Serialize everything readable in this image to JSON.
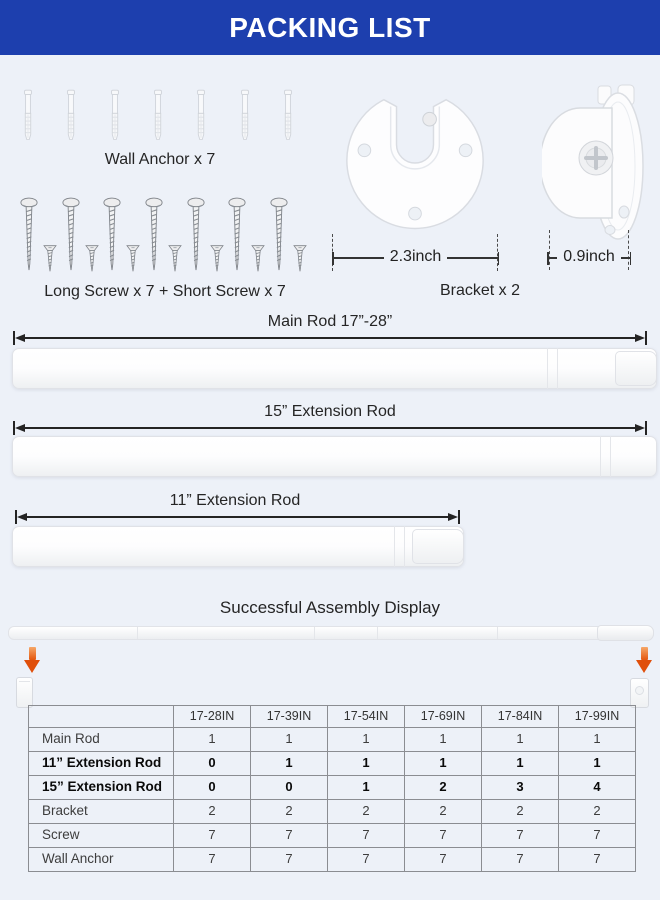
{
  "header": {
    "title": "PACKING LIST"
  },
  "sections": {
    "wall_anchor_label": "Wall Anchor x 7",
    "screw_label": "Long Screw x 7 + Short Screw x 7",
    "bracket_label": "Bracket x 2",
    "bracket_front_width": "2.3inch",
    "bracket_side_width": "0.9inch",
    "assembly_title": "Successful Assembly Display"
  },
  "counts": {
    "wall_anchor": 7,
    "long_screw": 7,
    "short_screw": 7,
    "bracket": 2
  },
  "rods": [
    {
      "label": "Main Rod 17”-28”"
    },
    {
      "label": "15” Extension Rod"
    },
    {
      "label": "11” Extension Rod"
    }
  ],
  "table": {
    "columns": [
      "",
      "17-28IN",
      "17-39IN",
      "17-54IN",
      "17-69IN",
      "17-84IN",
      "17-99IN"
    ],
    "rows": [
      {
        "label": "Main Rod",
        "bold": false,
        "values": [
          "1",
          "1",
          "1",
          "1",
          "1",
          "1"
        ]
      },
      {
        "label": "11” Extension Rod",
        "bold": true,
        "values": [
          "0",
          "1",
          "1",
          "1",
          "1",
          "1"
        ]
      },
      {
        "label": "15” Extension Rod",
        "bold": true,
        "values": [
          "0",
          "0",
          "1",
          "2",
          "3",
          "4"
        ]
      },
      {
        "label": "Bracket",
        "bold": false,
        "values": [
          "2",
          "2",
          "2",
          "2",
          "2",
          "2"
        ]
      },
      {
        "label": "Screw",
        "bold": false,
        "values": [
          "7",
          "7",
          "7",
          "7",
          "7",
          "7"
        ]
      },
      {
        "label": "Wall Anchor",
        "bold": false,
        "values": [
          "7",
          "7",
          "7",
          "7",
          "7",
          "7"
        ]
      }
    ]
  },
  "colors": {
    "header_bg": "#1d3fae",
    "accent_orange": "#e4570e"
  }
}
